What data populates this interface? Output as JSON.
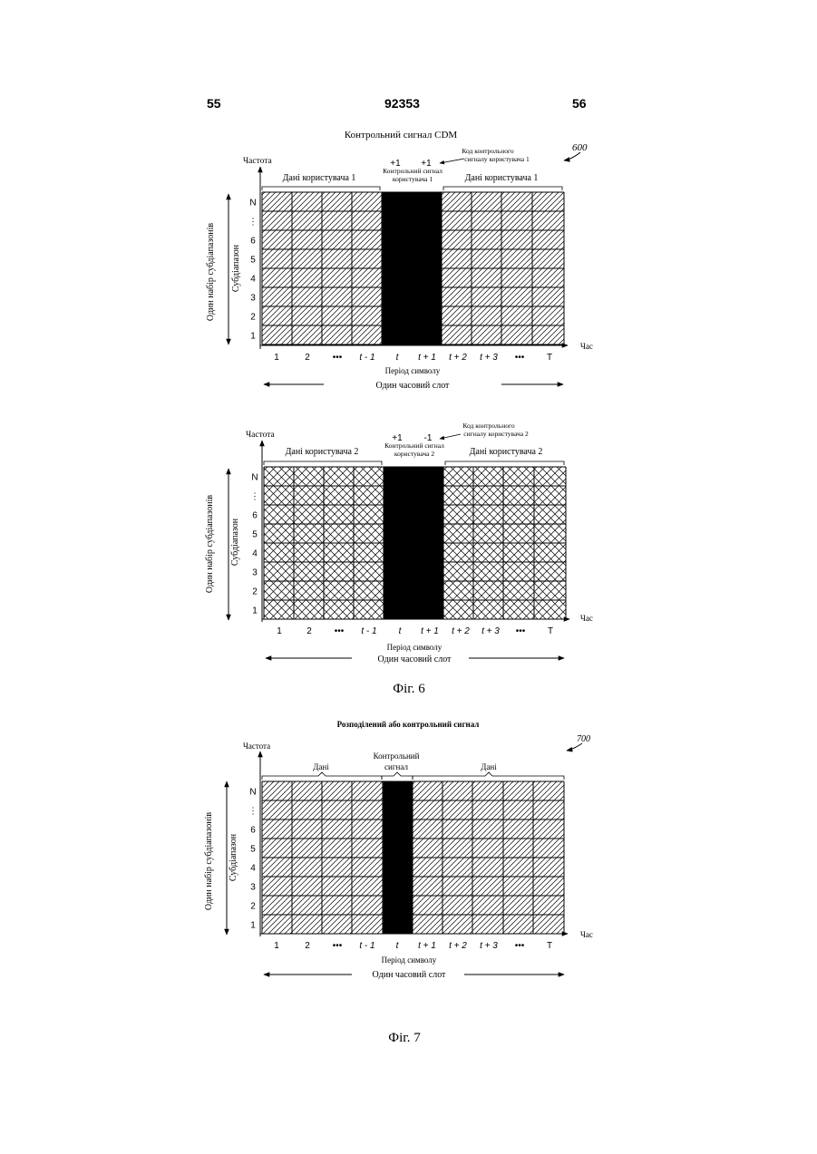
{
  "header": {
    "left_page": "55",
    "doc_number": "92353",
    "right_page": "56"
  },
  "fig6": {
    "caption": "Фіг. 6",
    "title": "Контрольний сигнал CDM",
    "ref": "600",
    "diagrams": [
      {
        "freq_label": "Частота",
        "data_left": "Дані користувача 1",
        "data_right": "Дані користувача 1",
        "pilot_label": [
          "Контрольний сигнал",
          "користувача 1"
        ],
        "code_values": [
          "+1",
          "+1"
        ],
        "code_label": [
          "Код контрольного",
          "сигналу користувача 1"
        ],
        "pattern": "diagonal",
        "y_outer": "Один набір субдіапазонів",
        "y_inner": "Субдіапазон",
        "rows": [
          "N",
          "⋮",
          "6",
          "5",
          "4",
          "3",
          "2",
          "1"
        ],
        "cols": [
          "1",
          "2",
          "•••",
          "t - 1",
          "t",
          "t + 1",
          "t + 2",
          "t + 3",
          "•••",
          "T"
        ],
        "time_label": "Час",
        "symbol_period": "Період символу",
        "slot": "Один часовий слот"
      },
      {
        "freq_label": "Частота",
        "data_left": "Дані користувача 2",
        "data_right": "Дані користувача 2",
        "pilot_label": [
          "Контрольний сигнал",
          "користувача 2"
        ],
        "code_values": [
          "+1",
          "-1"
        ],
        "code_label": [
          "Код контрольного",
          "сигналу користувача 2"
        ],
        "pattern": "cross",
        "y_outer": "Один набір субдіапазонів",
        "y_inner": "Субдіапазон",
        "rows": [
          "N",
          "⋮",
          "6",
          "5",
          "4",
          "3",
          "2",
          "1"
        ],
        "cols": [
          "1",
          "2",
          "•••",
          "t - 1",
          "t",
          "t + 1",
          "t + 2",
          "t + 3",
          "•••",
          "T"
        ],
        "time_label": "Час",
        "symbol_period": "Період символу",
        "slot": "Один часовий слот"
      }
    ]
  },
  "fig7": {
    "caption": "Фіг. 7",
    "title": "Розподілений або контрольний сигнал",
    "ref": "700",
    "diagram": {
      "freq_label": "Частота",
      "data_left": "Дані",
      "data_right": "Дані",
      "pilot_label": [
        "Контрольний",
        "сигнал"
      ],
      "pattern": "diagonal",
      "y_outer": "Один набір субдіапазонів",
      "y_inner": "Субдіапазон",
      "rows": [
        "N",
        "⋮",
        "6",
        "5",
        "4",
        "3",
        "2",
        "1"
      ],
      "cols": [
        "1",
        "2",
        "•••",
        "t - 1",
        "t",
        "t + 1",
        "t + 2",
        "t + 3",
        "•••",
        "T"
      ],
      "time_label": "Час",
      "symbol_period": "Період символу",
      "slot": "Один часовий слот"
    }
  }
}
